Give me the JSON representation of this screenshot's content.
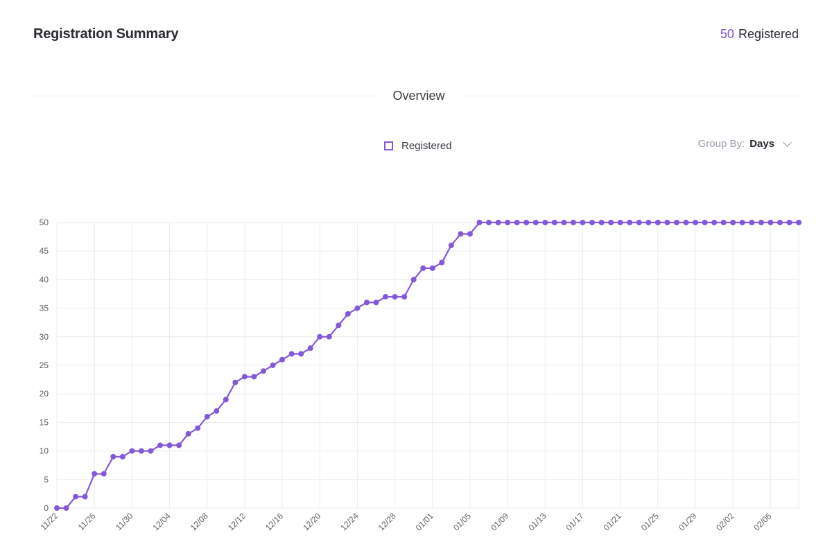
{
  "header": {
    "title": "Registration Summary",
    "registered_count": "50",
    "registered_label": "Registered"
  },
  "section": {
    "title": "Overview"
  },
  "legend": {
    "label": "Registered"
  },
  "group_by": {
    "label": "Group By:",
    "value": "Days"
  },
  "colors": {
    "accent": "#8458d9",
    "grid": "#ececf0"
  },
  "chart_data": {
    "type": "line",
    "series": [
      {
        "name": "Registered",
        "start_date": "2023-11-22",
        "values": [
          0,
          0,
          2,
          2,
          6,
          6,
          9,
          9,
          10,
          10,
          10,
          11,
          11,
          11,
          13,
          14,
          16,
          17,
          19,
          22,
          23,
          23,
          24,
          25,
          26,
          27,
          27,
          28,
          30,
          30,
          32,
          34,
          35,
          36,
          36,
          37,
          37,
          37,
          40,
          42,
          42,
          43,
          46,
          48,
          48,
          50,
          50,
          50,
          50,
          50,
          50,
          50,
          50,
          50,
          50,
          50,
          50,
          50,
          50,
          50,
          50,
          50,
          50,
          50,
          50,
          50,
          50,
          50,
          50,
          50,
          50,
          50,
          50,
          50,
          50,
          50,
          50,
          50,
          50,
          50
        ]
      }
    ],
    "x_tick_labels": [
      "11/22",
      "11/26",
      "11/30",
      "12/04",
      "12/08",
      "12/12",
      "12/16",
      "12/20",
      "12/24",
      "12/28",
      "01/01",
      "01/05",
      "01/09",
      "01/13",
      "01/17",
      "01/21",
      "01/25",
      "01/29",
      "02/02",
      "02/06"
    ],
    "x_tick_every_days": 4,
    "y_ticks": [
      0,
      5,
      10,
      15,
      20,
      25,
      30,
      35,
      40,
      45,
      50
    ],
    "ylim": [
      0,
      50
    ],
    "grid": true,
    "legend_position": "top-center"
  }
}
